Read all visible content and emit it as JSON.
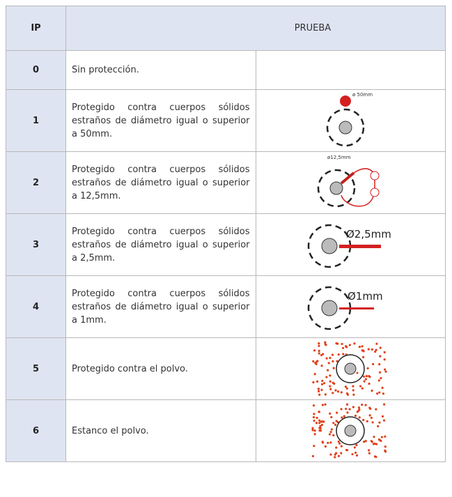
{
  "table": {
    "header": [
      "IP",
      "PRUEBA"
    ],
    "rows": [
      {
        "ip": "0",
        "description": "Sin protección."
      },
      {
        "ip": "1",
        "description": "Protegido contra cuerpos sólidos estraños de diámetro igual o superior a 50mm.",
        "test_label": "ø 50mm"
      },
      {
        "ip": "2",
        "description": "Protegido contra cuerpos sólidos estraños de diámetro igual o superior a 12,5mm.",
        "test_label": "ø12,5mm"
      },
      {
        "ip": "3",
        "description": "Protegido contra cuerpos sólidos estraños de diámetro igual o superior a 2,5mm.",
        "test_label": "Ø2,5mm"
      },
      {
        "ip": "4",
        "description": "Protegido contra cuerpos sólidos estraños de diámetro igual o superior a 1mm.",
        "test_label": "Ø1mm"
      },
      {
        "ip": "5",
        "description": "Protegido contra el polvo."
      },
      {
        "ip": "6",
        "description": "Estanco el polvo."
      }
    ]
  }
}
